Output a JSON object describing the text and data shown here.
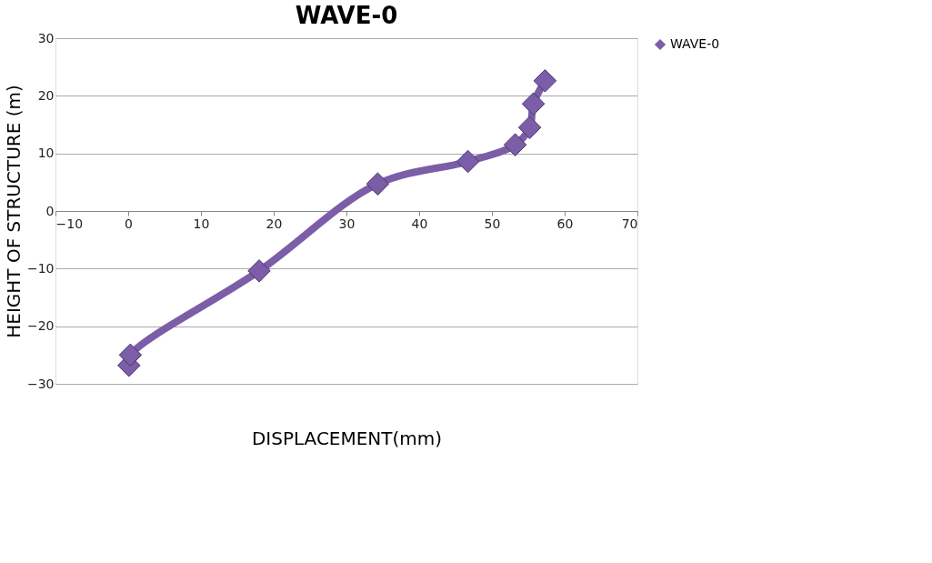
{
  "chart_data": {
    "type": "line",
    "title": "WAVE-0",
    "xlabel": "DISPLACEMENT(mm)",
    "ylabel": "HEIGHT OF STRUCTURE (m)",
    "series": [
      {
        "name": "WAVE-0",
        "color": "#7b5ea7",
        "x": [
          0.1,
          0.3,
          18.0,
          34.3,
          46.7,
          53.2,
          55.2,
          55.7,
          57.3
        ],
        "values": [
          -26.8,
          -25.0,
          -10.4,
          4.7,
          8.6,
          11.5,
          14.5,
          18.6,
          22.6
        ]
      }
    ],
    "xlim": [
      -10,
      70
    ],
    "xticks": [
      -10,
      0,
      10,
      20,
      30,
      40,
      50,
      60,
      70
    ],
    "ylim": [
      -30,
      30
    ],
    "yticks": [
      -30,
      -20,
      -10,
      0,
      10,
      20,
      30
    ],
    "grid": "y",
    "legend": "right",
    "marker": "diamond",
    "line_style": "solid"
  }
}
